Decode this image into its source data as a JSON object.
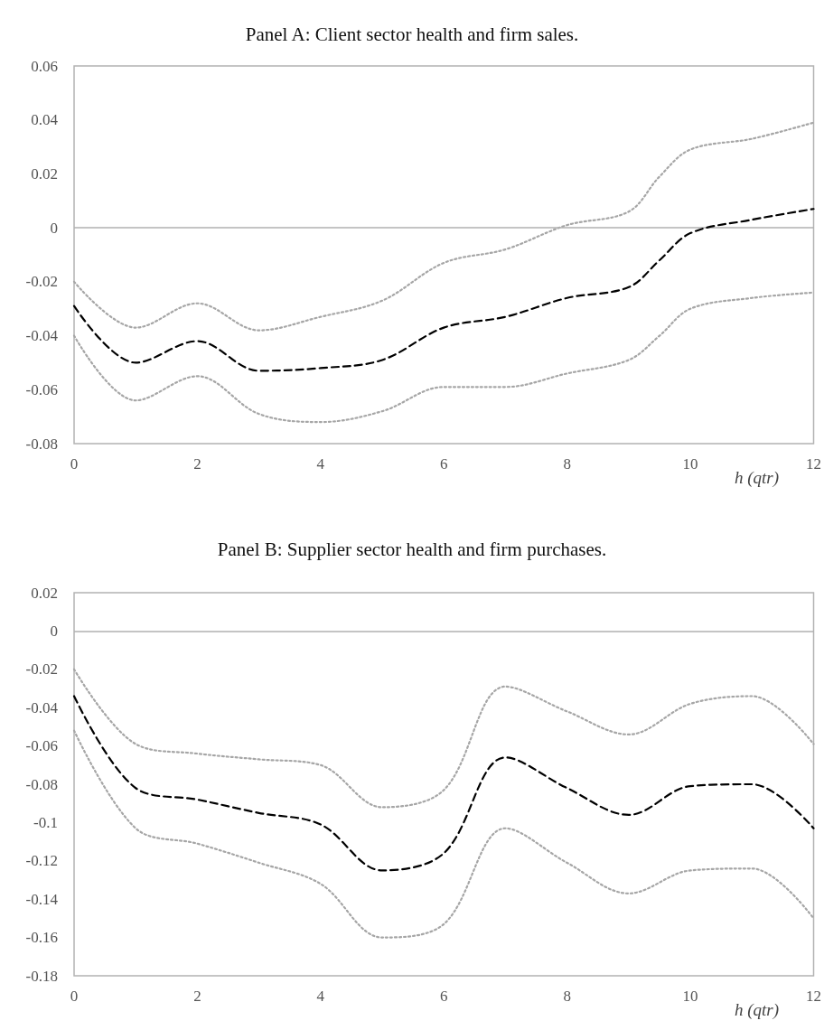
{
  "chart_data": [
    {
      "type": "line",
      "title": "Panel A: Client sector health and firm sales.",
      "xlabel": "h (qtr)",
      "x": [
        0,
        1,
        2,
        3,
        4,
        5,
        6,
        7,
        8,
        9,
        9.5,
        10,
        11,
        12
      ],
      "xlim": [
        0,
        12
      ],
      "xticks": [
        0,
        2,
        4,
        6,
        8,
        10,
        12
      ],
      "ylim": [
        -0.08,
        0.06
      ],
      "yticks": [
        -0.08,
        -0.06,
        -0.04,
        -0.02,
        0,
        0.02,
        0.04,
        0.06
      ],
      "grid": false,
      "ref_lines": [
        {
          "axis": "y",
          "value": 0,
          "color": "#b0b0b0",
          "line_style": "solid"
        }
      ],
      "series": [
        {
          "color": "#a6a6a6",
          "line_style": "dotted",
          "values": [
            -0.02,
            -0.037,
            -0.028,
            -0.038,
            -0.033,
            -0.027,
            -0.013,
            -0.008,
            0.001,
            0.006,
            0.019,
            0.029,
            0.033,
            0.039
          ]
        },
        {
          "color": "#a6a6a6",
          "line_style": "dotted",
          "values": [
            -0.04,
            -0.064,
            -0.055,
            -0.069,
            -0.072,
            -0.068,
            -0.059,
            -0.059,
            -0.054,
            -0.049,
            -0.04,
            -0.03,
            -0.026,
            -0.024
          ]
        },
        {
          "color": "#000000",
          "line_style": "dashed",
          "values": [
            -0.029,
            -0.05,
            -0.042,
            -0.053,
            -0.052,
            -0.049,
            -0.037,
            -0.033,
            -0.026,
            -0.022,
            -0.012,
            -0.002,
            0.003,
            0.007
          ]
        }
      ]
    },
    {
      "type": "line",
      "title": "Panel B: Supplier sector health and firm purchases.",
      "xlabel": "h (qtr)",
      "x": [
        0,
        1,
        2,
        3,
        4,
        5,
        6,
        7,
        8,
        9,
        10,
        11,
        12
      ],
      "xlim": [
        0,
        12
      ],
      "xticks": [
        0,
        2,
        4,
        6,
        8,
        10,
        12
      ],
      "ylim": [
        -0.18,
        0.02
      ],
      "yticks": [
        -0.18,
        -0.16,
        -0.14,
        -0.12,
        -0.1,
        -0.08,
        -0.06,
        -0.04,
        -0.02,
        0,
        0.02
      ],
      "grid": false,
      "ref_lines": [
        {
          "axis": "y",
          "value": 0,
          "color": "#b0b0b0",
          "line_style": "solid"
        }
      ],
      "series": [
        {
          "color": "#a6a6a6",
          "line_style": "dotted",
          "values": [
            -0.02,
            -0.059,
            -0.064,
            -0.067,
            -0.07,
            -0.092,
            -0.083,
            -0.029,
            -0.042,
            -0.054,
            -0.038,
            -0.034,
            -0.059
          ]
        },
        {
          "color": "#a6a6a6",
          "line_style": "dotted",
          "values": [
            -0.052,
            -0.103,
            -0.111,
            -0.121,
            -0.132,
            -0.16,
            -0.153,
            -0.103,
            -0.121,
            -0.137,
            -0.125,
            -0.124,
            -0.15
          ]
        },
        {
          "color": "#000000",
          "line_style": "dashed",
          "values": [
            -0.034,
            -0.082,
            -0.088,
            -0.095,
            -0.101,
            -0.125,
            -0.116,
            -0.066,
            -0.082,
            -0.096,
            -0.081,
            -0.08,
            -0.103
          ]
        }
      ]
    }
  ]
}
